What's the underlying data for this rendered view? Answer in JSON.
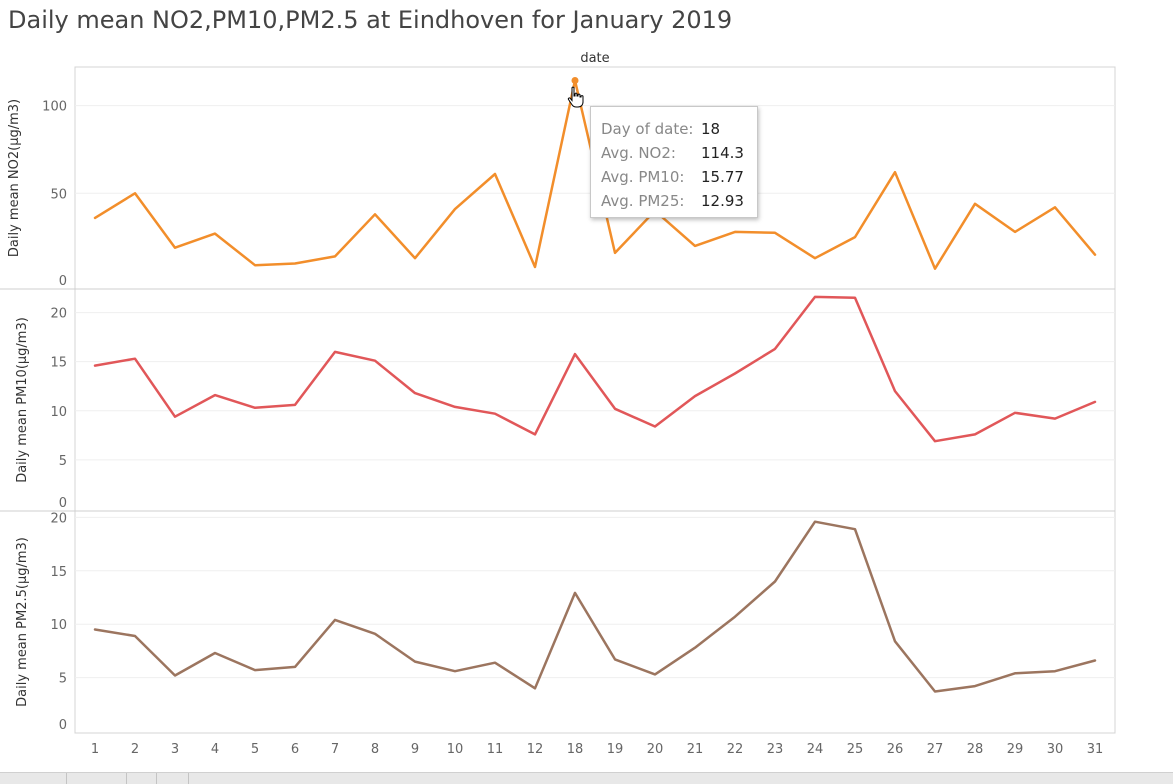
{
  "title": "Daily mean NO2,PM10,PM2.5 at Eindhoven for January 2019",
  "chart_data": {
    "type": "line",
    "column_header": "date",
    "categories": [
      "1",
      "2",
      "3",
      "4",
      "5",
      "6",
      "7",
      "8",
      "9",
      "10",
      "11",
      "12",
      "18",
      "19",
      "20",
      "21",
      "22",
      "23",
      "24",
      "25",
      "26",
      "27",
      "28",
      "29",
      "30",
      "31"
    ],
    "panels": [
      {
        "name": "NO2",
        "ylabel": "Daily mean NO2(µg/m3)",
        "ylim": [
          0,
          122
        ],
        "ticks": [
          0,
          50,
          100
        ],
        "color": "#F28E2B",
        "values": [
          36,
          50,
          19,
          27,
          9,
          10,
          14,
          38,
          13,
          41,
          61,
          8,
          114.3,
          16,
          40,
          20,
          28,
          27.5,
          13,
          25,
          62,
          7,
          44,
          28,
          42,
          15
        ]
      },
      {
        "name": "PM10",
        "ylabel": "Daily mean PM10(µg/m3)",
        "ylim": [
          0,
          22.4
        ],
        "ticks": [
          0,
          5,
          10,
          15,
          20
        ],
        "color": "#E15759",
        "values": [
          14.6,
          15.3,
          9.4,
          11.6,
          10.3,
          10.6,
          16.0,
          15.1,
          11.8,
          10.4,
          9.7,
          7.6,
          15.77,
          10.2,
          8.4,
          11.5,
          13.8,
          16.3,
          21.6,
          21.5,
          12.0,
          6.9,
          7.6,
          9.8,
          9.2,
          10.9
        ]
      },
      {
        "name": "PM2.5",
        "ylabel": "Daily mean  PM2.5(µg/m3)",
        "ylim": [
          0,
          20.6
        ],
        "ticks": [
          0,
          5,
          10,
          15,
          20
        ],
        "color": "#9C755F",
        "values": [
          9.5,
          8.9,
          5.2,
          7.3,
          5.7,
          6.0,
          10.4,
          9.1,
          6.5,
          5.6,
          6.4,
          4.0,
          12.93,
          6.7,
          5.3,
          7.8,
          10.7,
          14.0,
          19.6,
          18.9,
          8.4,
          3.7,
          4.2,
          5.4,
          5.6,
          6.6
        ]
      }
    ],
    "highlight": {
      "panel": 0,
      "category": "18"
    },
    "tooltip": [
      {
        "label": "Day of date:",
        "value": "18"
      },
      {
        "label": "Avg. NO2:",
        "value": "114.3"
      },
      {
        "label": "Avg. PM10:",
        "value": "15.77"
      },
      {
        "label": "Avg. PM25:",
        "value": "12.93"
      }
    ],
    "grid": true
  },
  "icons": {
    "cursor": "hand-pointer-icon"
  }
}
